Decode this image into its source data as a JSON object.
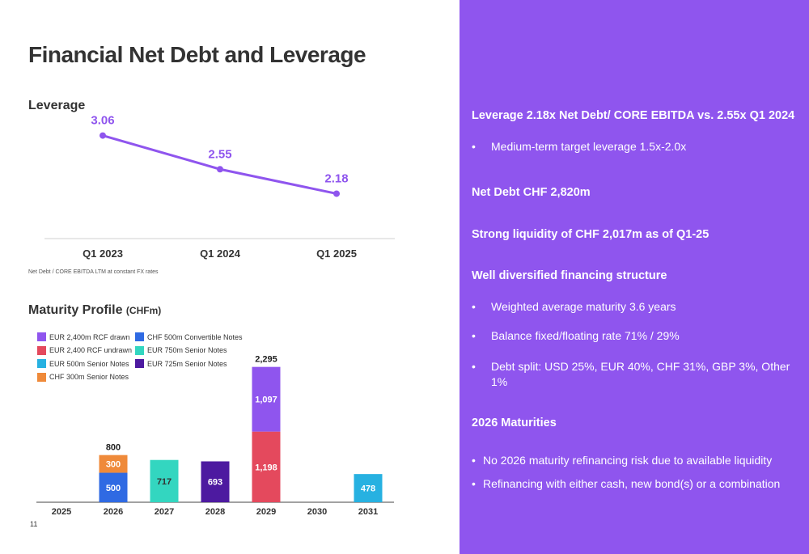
{
  "page": {
    "title": "Financial Net Debt and Leverage",
    "page_number": "11"
  },
  "leverage_section": {
    "heading": "Leverage",
    "footnote": "Net Debt / CORE EBITDA LTM at constant FX rates"
  },
  "maturity_section": {
    "heading": "Maturity Profile",
    "unit": "(CHFm)"
  },
  "chart_data": [
    {
      "type": "line",
      "categories": [
        "Q1 2023",
        "Q1 2024",
        "Q1 2025"
      ],
      "series": [
        {
          "values": [
            3.06,
            2.55,
            2.18
          ],
          "labels": [
            "3.06",
            "2.55",
            "2.18"
          ],
          "color": "#8f55ee"
        }
      ],
      "ylim": [
        1.5,
        3.3
      ],
      "grid": false
    },
    {
      "type": "bar",
      "stacked": true,
      "categories": [
        "2025",
        "2026",
        "2027",
        "2028",
        "2029",
        "2030",
        "2031"
      ],
      "legend_position": "top-left",
      "series": [
        {
          "name": "EUR 2,400m RCF drawn",
          "color": "#8f55ee",
          "values": [
            0,
            0,
            0,
            0,
            1097,
            0,
            0
          ],
          "labels": [
            "",
            "",
            "",
            "",
            "1,097",
            "",
            ""
          ]
        },
        {
          "name": "EUR 2,400 RCF undrawn",
          "color": "#e4495d",
          "values": [
            0,
            0,
            0,
            0,
            1198,
            0,
            0
          ],
          "labels": [
            "",
            "",
            "",
            "",
            "1,198",
            "",
            ""
          ]
        },
        {
          "name": "EUR 500m Senior Notes",
          "color": "#27b1e1",
          "values": [
            0,
            0,
            0,
            0,
            0,
            0,
            478
          ],
          "labels": [
            "",
            "",
            "",
            "",
            "",
            "",
            "478"
          ]
        },
        {
          "name": "CHF 300m Senior Notes",
          "color": "#ef8a3a",
          "values": [
            0,
            300,
            0,
            0,
            0,
            0,
            0
          ],
          "labels": [
            "",
            "300",
            "",
            "",
            "",
            "",
            ""
          ]
        },
        {
          "name": "CHF 500m Convertible Notes",
          "color": "#2f6ae3",
          "values": [
            0,
            500,
            0,
            0,
            0,
            0,
            0
          ],
          "labels": [
            "",
            "500",
            "",
            "",
            "",
            "",
            ""
          ]
        },
        {
          "name": "EUR 750m Senior Notes",
          "color": "#33d6c0",
          "values": [
            0,
            0,
            717,
            0,
            0,
            0,
            0
          ],
          "labels": [
            "",
            "",
            "717",
            "",
            "",
            "",
            ""
          ]
        },
        {
          "name": "EUR 725m Senior Notes",
          "color": "#4d1aa0",
          "values": [
            0,
            0,
            0,
            693,
            0,
            0,
            0
          ],
          "labels": [
            "",
            "",
            "",
            "693",
            "",
            "",
            ""
          ]
        }
      ],
      "totals": [
        {
          "category": "2026",
          "label": "800"
        },
        {
          "category": "2029",
          "label": "2,295"
        }
      ],
      "ylim": [
        0,
        2400
      ]
    }
  ],
  "right_panel": {
    "leverage_headline": "Leverage 2.18x Net Debt/ CORE EBITDA vs. 2.55x Q1 2024",
    "leverage_bullet": "Medium-term target leverage 1.5x-2.0x",
    "net_debt": "Net Debt CHF 2,820m",
    "liquidity": "Strong liquidity of CHF 2,017m as of Q1-25",
    "financing_headline": "Well diversified financing structure",
    "financing_bullets": [
      "Weighted average maturity 3.6 years",
      "Balance fixed/floating rate 71% / 29%",
      "Debt split: USD 25%, EUR 40%, CHF 31%, GBP 3%, Other 1%"
    ],
    "maturities_headline": "2026 Maturities",
    "maturities_bullets": [
      "No 2026 maturity refinancing risk due to available liquidity",
      "Refinancing with either cash, new bond(s) or a combination"
    ],
    "bullet_char": "•"
  }
}
